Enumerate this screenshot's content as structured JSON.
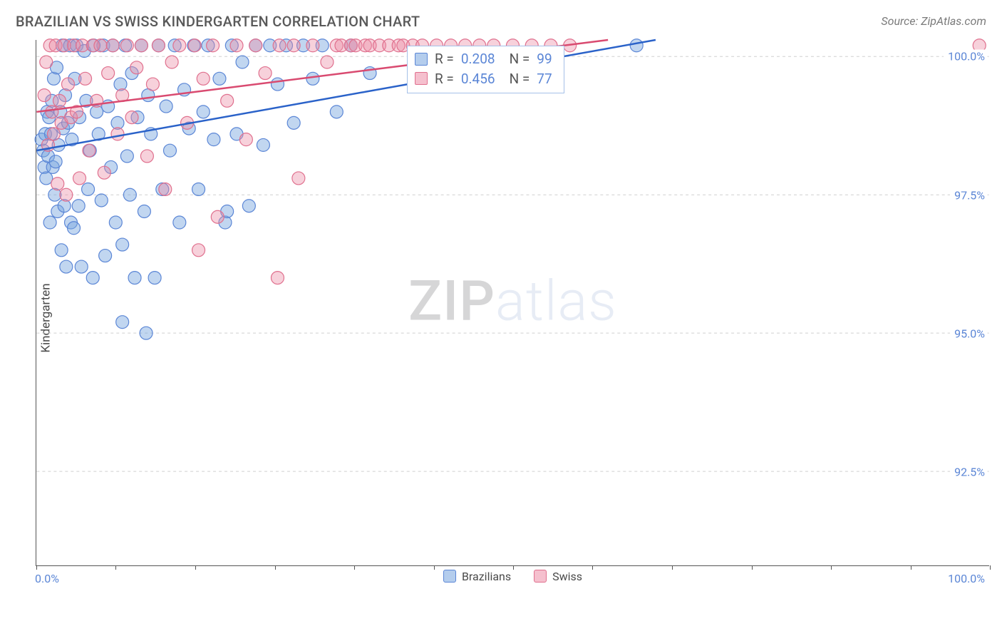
{
  "title": "BRAZILIAN VS SWISS KINDERGARTEN CORRELATION CHART",
  "source": "Source: ZipAtlas.com",
  "yaxis_title": "Kindergarten",
  "watermark_bold": "ZIP",
  "watermark_light": "atlas",
  "chart": {
    "type": "scatter",
    "xlim": [
      0,
      100
    ],
    "ylim": [
      90.8,
      100.3
    ],
    "x_min_label": "0.0%",
    "x_max_label": "100.0%",
    "x_ticks": [
      0,
      8.33,
      16.67,
      25,
      33.33,
      41.67,
      50,
      58.33,
      66.67,
      75,
      83.33,
      91.67,
      100
    ],
    "y_gridlines": [
      92.5,
      95.0,
      97.5,
      100.0
    ],
    "y_labels": [
      "92.5%",
      "95.0%",
      "97.5%",
      "100.0%"
    ],
    "plot_bg": "#ffffff",
    "grid_color": "#cfcfcf",
    "axis_color": "#555555",
    "series": [
      {
        "name": "Brazilians",
        "marker_fill": "rgba(118,164,222,0.45)",
        "marker_stroke": "#5b86d6",
        "marker_radius": 9,
        "line_color": "#2a62c9",
        "line_width": 2.5,
        "trend": {
          "x1": 0,
          "y1": 98.3,
          "x2": 65,
          "y2": 100.3
        },
        "stats": {
          "R": "0.208",
          "N": "99"
        },
        "swatch_fill": "rgba(118,164,222,0.55)",
        "swatch_border": "#5b86d6",
        "points": [
          [
            0.5,
            98.5
          ],
          [
            0.7,
            98.3
          ],
          [
            0.8,
            98.0
          ],
          [
            0.9,
            98.6
          ],
          [
            1.0,
            97.8
          ],
          [
            1.1,
            99.0
          ],
          [
            1.2,
            98.2
          ],
          [
            1.3,
            98.9
          ],
          [
            1.4,
            97.0
          ],
          [
            1.5,
            98.6
          ],
          [
            1.6,
            99.2
          ],
          [
            1.7,
            98.0
          ],
          [
            1.8,
            99.6
          ],
          [
            1.9,
            97.5
          ],
          [
            2.0,
            98.1
          ],
          [
            2.1,
            99.8
          ],
          [
            2.2,
            97.2
          ],
          [
            2.3,
            98.4
          ],
          [
            2.5,
            99.0
          ],
          [
            2.6,
            96.5
          ],
          [
            2.7,
            100.2
          ],
          [
            2.8,
            98.7
          ],
          [
            2.9,
            97.3
          ],
          [
            3.0,
            99.3
          ],
          [
            3.1,
            96.2
          ],
          [
            3.3,
            98.8
          ],
          [
            3.5,
            100.2
          ],
          [
            3.6,
            97.0
          ],
          [
            3.7,
            98.5
          ],
          [
            3.9,
            96.9
          ],
          [
            4.0,
            99.6
          ],
          [
            4.2,
            100.2
          ],
          [
            4.4,
            97.3
          ],
          [
            4.5,
            98.9
          ],
          [
            4.7,
            96.2
          ],
          [
            5.0,
            100.1
          ],
          [
            5.2,
            99.2
          ],
          [
            5.4,
            97.6
          ],
          [
            5.6,
            98.3
          ],
          [
            5.9,
            96.0
          ],
          [
            6.0,
            100.2
          ],
          [
            6.3,
            99.0
          ],
          [
            6.5,
            98.6
          ],
          [
            6.8,
            97.4
          ],
          [
            7.0,
            100.2
          ],
          [
            7.2,
            96.4
          ],
          [
            7.5,
            99.1
          ],
          [
            7.8,
            98.0
          ],
          [
            8.0,
            100.2
          ],
          [
            8.3,
            97.0
          ],
          [
            8.5,
            98.8
          ],
          [
            8.8,
            99.5
          ],
          [
            9.0,
            96.6
          ],
          [
            9.3,
            100.2
          ],
          [
            9.5,
            98.2
          ],
          [
            9.8,
            97.5
          ],
          [
            10.0,
            99.7
          ],
          [
            10.3,
            96.0
          ],
          [
            10.6,
            98.9
          ],
          [
            11.0,
            100.2
          ],
          [
            11.3,
            97.2
          ],
          [
            11.7,
            99.3
          ],
          [
            12.0,
            98.6
          ],
          [
            12.4,
            96.0
          ],
          [
            12.8,
            100.2
          ],
          [
            13.2,
            97.6
          ],
          [
            13.6,
            99.1
          ],
          [
            14.0,
            98.3
          ],
          [
            14.5,
            100.2
          ],
          [
            15.0,
            97.0
          ],
          [
            15.5,
            99.4
          ],
          [
            16.0,
            98.7
          ],
          [
            16.5,
            100.2
          ],
          [
            17.0,
            97.6
          ],
          [
            17.5,
            99.0
          ],
          [
            18.0,
            100.2
          ],
          [
            18.6,
            98.5
          ],
          [
            19.2,
            99.6
          ],
          [
            19.8,
            97.0
          ],
          [
            20.0,
            97.2
          ],
          [
            20.5,
            100.2
          ],
          [
            21.0,
            98.6
          ],
          [
            21.6,
            99.9
          ],
          [
            22.3,
            97.3
          ],
          [
            23.0,
            100.2
          ],
          [
            23.8,
            98.4
          ],
          [
            11.5,
            95.0
          ],
          [
            9.0,
            95.2
          ],
          [
            24.5,
            100.2
          ],
          [
            25.3,
            99.5
          ],
          [
            26.2,
            100.2
          ],
          [
            27.0,
            98.8
          ],
          [
            28.0,
            100.2
          ],
          [
            29.0,
            99.6
          ],
          [
            30.0,
            100.2
          ],
          [
            31.5,
            99.0
          ],
          [
            33.0,
            100.2
          ],
          [
            35.0,
            99.7
          ],
          [
            63.0,
            100.2
          ]
        ]
      },
      {
        "name": "Swiss",
        "marker_fill": "rgba(236,140,165,0.40)",
        "marker_stroke": "#e0708e",
        "marker_radius": 9,
        "line_color": "#d94a70",
        "line_width": 2.5,
        "trend": {
          "x1": 0,
          "y1": 99.0,
          "x2": 60,
          "y2": 100.3
        },
        "stats": {
          "R": "0.456",
          "N": "77"
        },
        "swatch_fill": "rgba(236,140,165,0.55)",
        "swatch_border": "#e0708e",
        "points": [
          [
            0.8,
            99.3
          ],
          [
            1.0,
            99.9
          ],
          [
            1.2,
            98.4
          ],
          [
            1.4,
            100.2
          ],
          [
            1.6,
            99.0
          ],
          [
            1.8,
            98.6
          ],
          [
            2.0,
            100.2
          ],
          [
            2.2,
            97.7
          ],
          [
            2.4,
            99.2
          ],
          [
            2.6,
            98.8
          ],
          [
            2.9,
            100.2
          ],
          [
            3.1,
            97.5
          ],
          [
            3.3,
            99.5
          ],
          [
            3.6,
            98.9
          ],
          [
            3.9,
            100.2
          ],
          [
            4.2,
            99.0
          ],
          [
            4.5,
            97.8
          ],
          [
            4.8,
            100.2
          ],
          [
            5.1,
            99.6
          ],
          [
            5.5,
            98.3
          ],
          [
            5.9,
            100.2
          ],
          [
            6.3,
            99.2
          ],
          [
            6.7,
            100.2
          ],
          [
            7.1,
            97.9
          ],
          [
            7.5,
            99.7
          ],
          [
            8.0,
            100.2
          ],
          [
            8.5,
            98.6
          ],
          [
            9.0,
            99.3
          ],
          [
            9.5,
            100.2
          ],
          [
            10.0,
            98.9
          ],
          [
            10.5,
            99.8
          ],
          [
            11.0,
            100.2
          ],
          [
            11.6,
            98.2
          ],
          [
            12.2,
            99.5
          ],
          [
            12.8,
            100.2
          ],
          [
            13.5,
            97.6
          ],
          [
            14.2,
            99.9
          ],
          [
            15.0,
            100.2
          ],
          [
            15.8,
            98.8
          ],
          [
            16.6,
            100.2
          ],
          [
            17.0,
            96.5
          ],
          [
            17.5,
            99.6
          ],
          [
            18.5,
            100.2
          ],
          [
            19.0,
            97.1
          ],
          [
            20.0,
            99.2
          ],
          [
            21.0,
            100.2
          ],
          [
            22.0,
            98.5
          ],
          [
            23.0,
            100.2
          ],
          [
            24.0,
            99.7
          ],
          [
            25.3,
            96.0
          ],
          [
            25.5,
            100.2
          ],
          [
            27.0,
            100.2
          ],
          [
            27.5,
            97.8
          ],
          [
            29.0,
            100.2
          ],
          [
            30.5,
            99.9
          ],
          [
            31.5,
            100.2
          ],
          [
            32.0,
            100.2
          ],
          [
            33.0,
            100.2
          ],
          [
            33.5,
            100.2
          ],
          [
            34.5,
            100.2
          ],
          [
            35.0,
            100.2
          ],
          [
            36.0,
            100.2
          ],
          [
            37.0,
            100.2
          ],
          [
            38.0,
            100.2
          ],
          [
            38.5,
            100.2
          ],
          [
            39.5,
            100.2
          ],
          [
            40.5,
            100.2
          ],
          [
            42.0,
            100.2
          ],
          [
            43.5,
            100.2
          ],
          [
            45.0,
            100.2
          ],
          [
            46.5,
            100.2
          ],
          [
            48.0,
            100.2
          ],
          [
            50.0,
            100.2
          ],
          [
            52.0,
            100.2
          ],
          [
            54.0,
            100.2
          ],
          [
            56.0,
            100.2
          ],
          [
            99.0,
            100.2
          ]
        ]
      }
    ],
    "stats_labels": {
      "R": "R =",
      "N": "N ="
    }
  },
  "legend": {
    "items": [
      {
        "label": "Brazilians",
        "fill": "rgba(118,164,222,0.55)",
        "border": "#5b86d6"
      },
      {
        "label": "Swiss",
        "fill": "rgba(236,140,165,0.55)",
        "border": "#e0708e"
      }
    ]
  }
}
